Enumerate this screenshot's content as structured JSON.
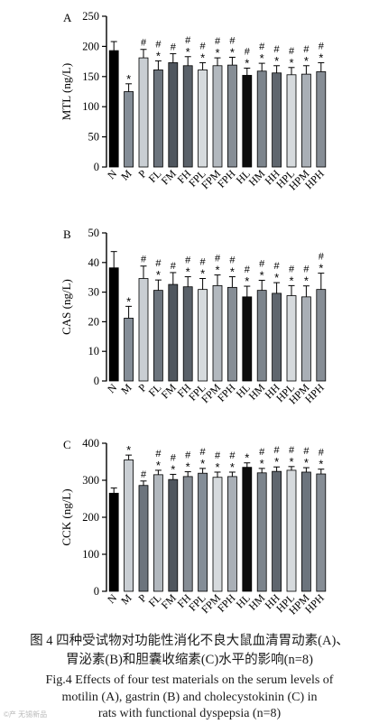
{
  "chart_data": [
    {
      "type": "bar",
      "panel": "A",
      "ylabel": "MTL (ng/L)",
      "ylim": [
        0,
        250
      ],
      "yticks": [
        0,
        50,
        100,
        150,
        200,
        250
      ],
      "categories": [
        "N",
        "M",
        "P",
        "FL",
        "FM",
        "FH",
        "FPL",
        "FPM",
        "FPH",
        "HL",
        "HM",
        "HH",
        "HPL",
        "HPM",
        "HPH"
      ],
      "values": [
        193,
        125,
        181,
        161,
        173,
        168,
        161,
        168,
        169,
        152,
        159,
        156,
        153,
        154,
        158
      ],
      "errors": [
        15,
        13,
        14,
        15,
        15,
        15,
        12,
        13,
        13,
        12,
        13,
        12,
        12,
        14,
        15
      ],
      "marks": [
        "",
        "*",
        "#",
        "#\n*",
        "#",
        "#\n*",
        "#\n*",
        "#\n*",
        "#\n*",
        "#\n*",
        "#\n*",
        "#\n*",
        "#\n*",
        "#\n*",
        "#\n*"
      ],
      "colors": [
        "#000000",
        "#848d97",
        "#c9ced3",
        "#6c747d",
        "#4f565e",
        "#5a6169",
        "#d6dadd",
        "#b2b8be",
        "#868d95",
        "#0d0d0d",
        "#7c848c",
        "#5f666e",
        "#d6dadd",
        "#a9afb6",
        "#868d95"
      ]
    },
    {
      "type": "bar",
      "panel": "B",
      "ylabel": "CAS (ng/L)",
      "ylim": [
        0,
        50
      ],
      "yticks": [
        0,
        10,
        20,
        30,
        40,
        50
      ],
      "categories": [
        "N",
        "M",
        "P",
        "FL",
        "FM",
        "FH",
        "FPL",
        "FPM",
        "FPH",
        "HL",
        "HM",
        "HH",
        "HPL",
        "HPM",
        "HPH"
      ],
      "values": [
        38.2,
        21.2,
        34.6,
        30.6,
        32.6,
        31.8,
        30.9,
        32.2,
        31.6,
        28.4,
        30.6,
        29.6,
        28.8,
        28.4,
        30.9
      ],
      "errors": [
        5.5,
        4.0,
        4.2,
        3.5,
        4.0,
        3.4,
        3.7,
        3.6,
        3.6,
        3.6,
        3.4,
        3.6,
        3.4,
        3.7,
        5.5
      ],
      "marks": [
        "",
        "*",
        "#",
        "#\n*",
        "#",
        "#\n*",
        "#\n*",
        "#\n*",
        "#\n*",
        "#\n*",
        "#\n*",
        "#\n*",
        "#\n*",
        "#\n*",
        "#\n*"
      ],
      "colors": [
        "#000000",
        "#848d97",
        "#c9ced3",
        "#6c747d",
        "#4f565e",
        "#5a6169",
        "#d6dadd",
        "#b2b8be",
        "#868d95",
        "#0d0d0d",
        "#7c848c",
        "#5f666e",
        "#d6dadd",
        "#a9afb6",
        "#868d95"
      ]
    },
    {
      "type": "bar",
      "panel": "C",
      "ylabel": "CCK (ng/L)",
      "ylim": [
        0,
        400
      ],
      "yticks": [
        0,
        100,
        200,
        300,
        400
      ],
      "categories": [
        "N",
        "M",
        "P",
        "FL",
        "FM",
        "FH",
        "FPL",
        "FPM",
        "FPH",
        "HL",
        "HM",
        "HH",
        "HPL",
        "HPM",
        "HPH"
      ],
      "values": [
        265,
        355,
        286,
        315,
        302,
        310,
        319,
        308,
        310,
        335,
        320,
        324,
        327,
        322,
        317
      ],
      "errors": [
        14,
        13,
        12,
        12,
        14,
        13,
        13,
        14,
        12,
        12,
        12,
        12,
        10,
        12,
        13
      ],
      "marks": [
        "",
        "*",
        "#",
        "#\n*",
        "#\n*",
        "#\n*",
        "#\n*",
        "#\n*",
        "#\n*",
        "*",
        "#\n*",
        "#\n*",
        "#\n*",
        "#\n*",
        "#\n*"
      ],
      "colors": [
        "#000000",
        "#c9ced3",
        "#6c747d",
        "#b2b8be",
        "#4f565e",
        "#868d95",
        "#848d97",
        "#d6dadd",
        "#a9afb6",
        "#0d0d0d",
        "#7c848c",
        "#5f666e",
        "#d6dadd",
        "#6c747d",
        "#868d95"
      ]
    }
  ],
  "caption": {
    "cn_line1": "图 4   四种受试物对功能性消化不良大鼠血清胃动素(A)、",
    "cn_line2": "胃泌素(B)和胆囊收缩素(C)水平的影响(n=8)",
    "en_line1": "Fig.4    Effects of four test materials on the serum levels of",
    "en_line2": "motilin (A), gastrin (B) and cholecystokinin (C) in",
    "en_line3": "rats with functional dyspepsia (n=8)"
  },
  "watermark": "©产 无锡新品"
}
